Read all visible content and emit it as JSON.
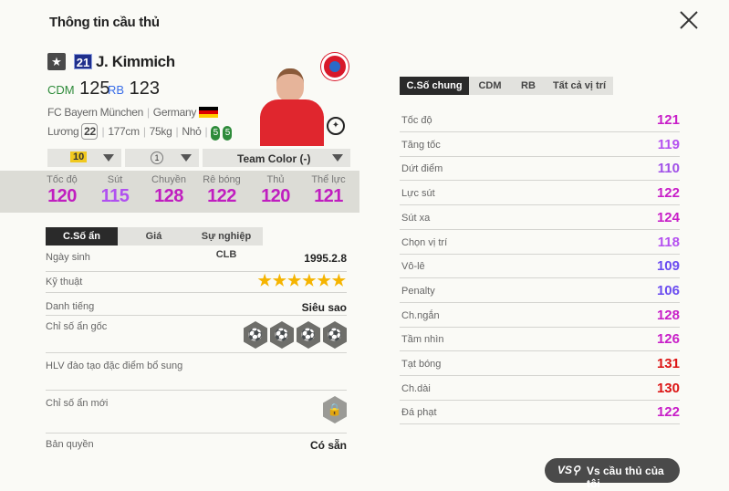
{
  "header": {
    "title": "Thông tin cầu thủ"
  },
  "player": {
    "season_number": "21",
    "name": "J. Kimmich",
    "positions": [
      {
        "pos": "CDM",
        "ovr": "125",
        "color": "#2e8b3a"
      },
      {
        "pos": "RB",
        "ovr": "123",
        "color": "#3a6ee8"
      }
    ],
    "club": "FC Bayern München",
    "nation": "Germany",
    "salary_label": "Lương",
    "salary": "22",
    "height": "177cm",
    "weight": "75kg",
    "body": "Nhỏ",
    "feet": [
      "5",
      "5"
    ]
  },
  "selectors": {
    "upgrade": "10",
    "level": "1",
    "team_color": "Team Color (-)"
  },
  "main_stats": [
    {
      "label": "Tốc độ",
      "value": "120",
      "color": "#c01ec0"
    },
    {
      "label": "Sút",
      "value": "115",
      "color": "#b050f0"
    },
    {
      "label": "Chuyền",
      "value": "128",
      "color": "#c01ec0"
    },
    {
      "label": "Rê bóng",
      "value": "122",
      "color": "#c01ec0"
    },
    {
      "label": "Thủ",
      "value": "120",
      "color": "#c01ec0"
    },
    {
      "label": "Thể lực",
      "value": "121",
      "color": "#c01ec0"
    }
  ],
  "left_tabs": [
    "C.Số ẩn",
    "Giá",
    "Sự nghiệp CLB"
  ],
  "details": {
    "birth_label": "Ngày sinh",
    "birth": "1995.2.8",
    "skill_label": "Kỹ thuật",
    "skill_stars": 6,
    "rep_label": "Danh tiếng",
    "rep": "Siêu sao",
    "traits_label": "Chỉ số ẩn gốc",
    "coach_label": "HLV đào tạo đặc điểm bổ sung",
    "new_traits_label": "Chỉ số ẩn mới",
    "license_label": "Bản quyền",
    "license": "Có sẵn"
  },
  "right_tabs": [
    "C.Số chung",
    "CDM",
    "RB",
    "Tất cả vị trí"
  ],
  "attributes": [
    {
      "label": "Tốc độ",
      "value": "121",
      "color": "#c81ec8"
    },
    {
      "label": "Tăng tốc",
      "value": "119",
      "color": "#b450f0"
    },
    {
      "label": "Dứt điểm",
      "value": "110",
      "color": "#a050e8"
    },
    {
      "label": "Lực sút",
      "value": "122",
      "color": "#c81ec8"
    },
    {
      "label": "Sút xa",
      "value": "124",
      "color": "#c81ec8"
    },
    {
      "label": "Chọn vị trí",
      "value": "118",
      "color": "#b450f0"
    },
    {
      "label": "Vô-lê",
      "value": "109",
      "color": "#6a4cf0"
    },
    {
      "label": "Penalty",
      "value": "106",
      "color": "#6a4cf0"
    },
    {
      "label": "Ch.ngắn",
      "value": "128",
      "color": "#c81ec8"
    },
    {
      "label": "Tầm nhìn",
      "value": "126",
      "color": "#c81ec8"
    },
    {
      "label": "Tạt bóng",
      "value": "131",
      "color": "#dc1414"
    },
    {
      "label": "Ch.dài",
      "value": "130",
      "color": "#dc1414"
    },
    {
      "label": "Đá phạt",
      "value": "122",
      "color": "#c81ec8"
    }
  ],
  "compare_button": "Vs cầu thủ của tôi"
}
